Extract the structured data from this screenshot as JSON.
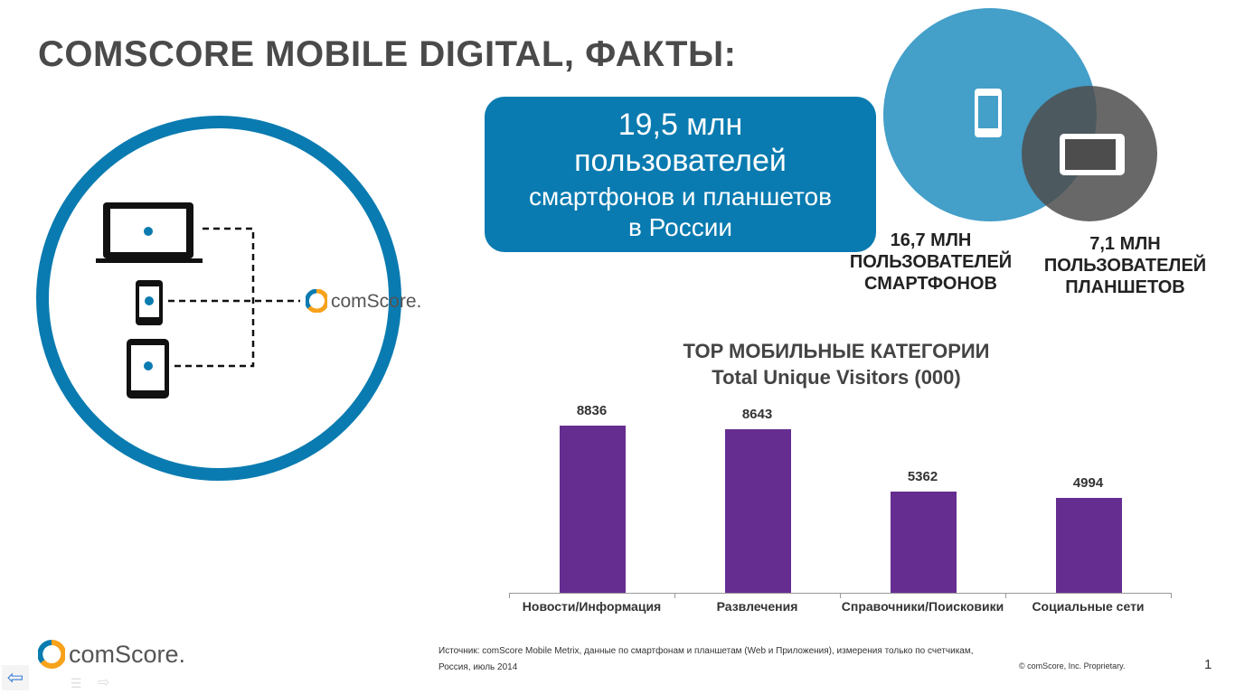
{
  "title": "COMSCORE MOBILE DIGITAL, ФАКТЫ:",
  "callout": {
    "line1": "19,5 млн",
    "line2": "пользователей",
    "line3": "смартфонов и планшетов",
    "line4": "в России"
  },
  "venn": {
    "smartphones": {
      "value": "16,7 МЛН",
      "line2": "ПОЛЬЗОВАТЕЛЕЙ",
      "line3": "СМАРТФОНОВ"
    },
    "tablets": {
      "value": "7,1 МЛН",
      "line2": "ПОЛЬЗОВАТЕЛЕЙ",
      "line3": "ПЛАНШЕТОВ"
    }
  },
  "diagram_logo": "comScore.",
  "chart_data": {
    "type": "bar",
    "title": "TOP МОБИЛЬНЫЕ КАТЕГОРИИ",
    "subtitle": "Total Unique Visitors (000)",
    "categories": [
      "Новости/Информация",
      "Развлечения",
      "Справочники/Поисковики",
      "Социальные сети"
    ],
    "values": [
      8836,
      8643,
      5362,
      4994
    ],
    "value_labels": [
      "8836",
      "8643",
      "5362",
      "4994"
    ],
    "ylim": [
      0,
      10000
    ],
    "color": "#662d91"
  },
  "footer": {
    "source": "Источник: comScore Mobile  Metrix, данные по смартфонам и планшетам (Web и Приложения), измерения только по счетчикам, Россия, июль 2014",
    "copyright": "© comScore, Inc. Proprietary.",
    "page": "1",
    "logo": "comScore."
  },
  "colors": {
    "accent": "#0a7bb0",
    "gray": "#555555",
    "bar": "#662d91"
  }
}
